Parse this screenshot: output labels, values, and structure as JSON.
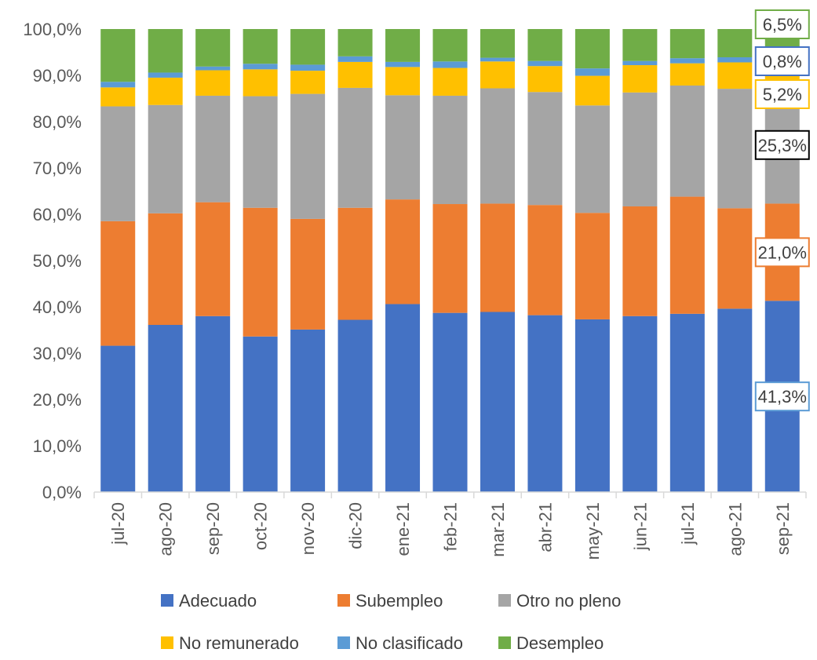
{
  "chart_data": {
    "type": "bar",
    "stacked": true,
    "percent_stacked": true,
    "categories": [
      "jul-20",
      "ago-20",
      "sep-20",
      "oct-20",
      "nov-20",
      "dic-20",
      "ene-21",
      "feb-21",
      "mar-21",
      "abr-21",
      "may-21",
      "jun-21",
      "jul-21",
      "ago-21",
      "sep-21"
    ],
    "series": [
      {
        "name": "Adecuado",
        "color": "#4472C4",
        "values": [
          31.6,
          36.1,
          38.0,
          33.6,
          35.1,
          37.2,
          40.6,
          38.7,
          38.9,
          38.2,
          37.3,
          38.0,
          38.5,
          39.6,
          41.3
        ]
      },
      {
        "name": "Subempleo",
        "color": "#ED7D31",
        "values": [
          26.9,
          24.1,
          24.6,
          27.8,
          23.9,
          24.2,
          22.6,
          23.5,
          23.4,
          23.8,
          23.0,
          23.7,
          25.3,
          21.7,
          21.0
        ]
      },
      {
        "name": "Otro no pleno",
        "color": "#A5A5A5",
        "values": [
          24.8,
          23.4,
          23.0,
          24.1,
          27.0,
          25.9,
          22.5,
          23.4,
          24.9,
          24.4,
          23.2,
          24.6,
          24.0,
          25.8,
          25.3
        ]
      },
      {
        "name": "No remunerado",
        "color": "#FFC000",
        "values": [
          4.1,
          5.9,
          5.5,
          5.8,
          5.0,
          5.6,
          6.1,
          6.0,
          5.8,
          5.6,
          6.4,
          5.9,
          4.8,
          5.7,
          5.2
        ]
      },
      {
        "name": "No clasificado",
        "color": "#5B9BD5",
        "values": [
          1.2,
          1.1,
          0.8,
          1.2,
          1.3,
          1.2,
          1.1,
          1.4,
          0.8,
          1.1,
          1.6,
          0.9,
          1.1,
          1.1,
          0.8
        ]
      },
      {
        "name": "Desempleo",
        "color": "#70AD47",
        "values": [
          11.4,
          9.4,
          8.1,
          7.5,
          7.7,
          5.9,
          7.1,
          7.0,
          6.2,
          6.9,
          8.5,
          6.9,
          6.3,
          6.1,
          6.5
        ]
      }
    ],
    "y_ticks": [
      "0,0%",
      "10,0%",
      "20,0%",
      "30,0%",
      "40,0%",
      "50,0%",
      "60,0%",
      "70,0%",
      "80,0%",
      "90,0%",
      "100,0%"
    ],
    "ylim": [
      0,
      100
    ],
    "legend_position": "bottom",
    "grid": false,
    "data_labels": [
      {
        "category": "sep-21",
        "series": "Adecuado",
        "text": "41,3%",
        "border_color": "#5B9BD5"
      },
      {
        "category": "sep-21",
        "series": "Subempleo",
        "text": "21,0%",
        "border_color": "#ED7D31"
      },
      {
        "category": "sep-21",
        "series": "Otro no pleno",
        "text": "25,3%",
        "border_color": "#000000"
      },
      {
        "category": "sep-21",
        "series": "No remunerado",
        "text": "5,2%",
        "border_color": "#FFC000"
      },
      {
        "category": "sep-21",
        "series": "No clasificado",
        "text": "0,8%",
        "border_color": "#4472C4"
      },
      {
        "category": "sep-21",
        "series": "Desempleo",
        "text": "6,5%",
        "border_color": "#70AD47"
      }
    ]
  }
}
